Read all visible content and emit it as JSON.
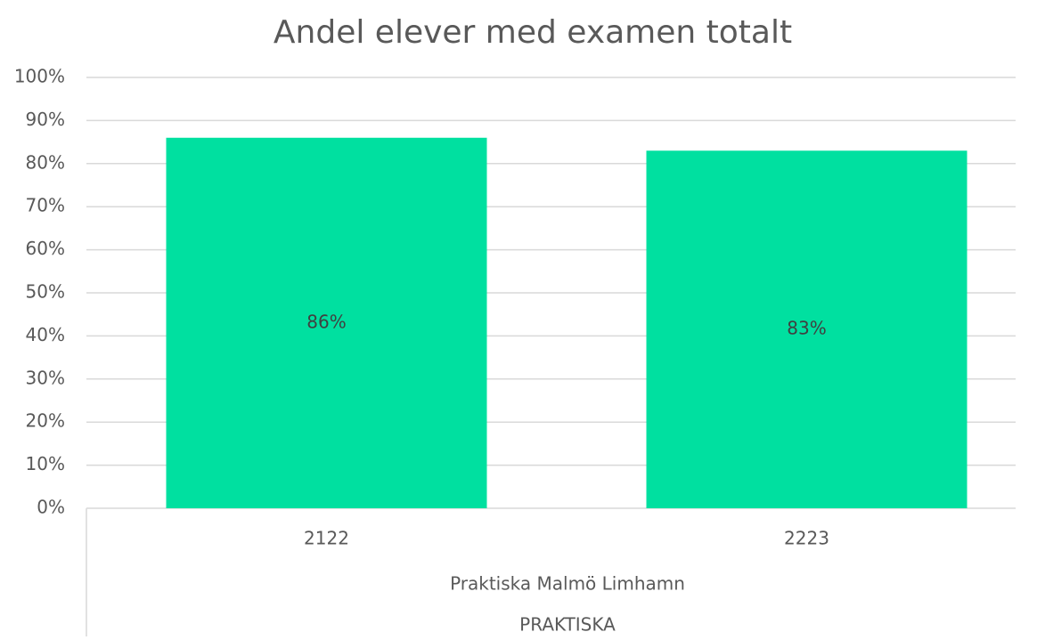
{
  "chart_data": {
    "type": "bar",
    "title": "Andel elever med examen totalt",
    "categories": [
      "2122",
      "2223"
    ],
    "category_groups": [
      "Praktiska Malmö Limhamn"
    ],
    "category_supergroups": [
      "PRAKTISKA"
    ],
    "values": [
      86,
      83
    ],
    "value_labels": [
      "86%",
      "83%"
    ],
    "color": "#00e0a0",
    "ylim": [
      0,
      100
    ],
    "yticks": [
      {
        "value": 0,
        "label": "0%"
      },
      {
        "value": 10,
        "label": "10%"
      },
      {
        "value": 20,
        "label": "20%"
      },
      {
        "value": 30,
        "label": "30%"
      },
      {
        "value": 40,
        "label": "40%"
      },
      {
        "value": 50,
        "label": "50%"
      },
      {
        "value": 60,
        "label": "60%"
      },
      {
        "value": 70,
        "label": "70%"
      },
      {
        "value": 80,
        "label": "80%"
      },
      {
        "value": 90,
        "label": "90%"
      },
      {
        "value": 100,
        "label": "100%"
      }
    ],
    "grid": true
  }
}
